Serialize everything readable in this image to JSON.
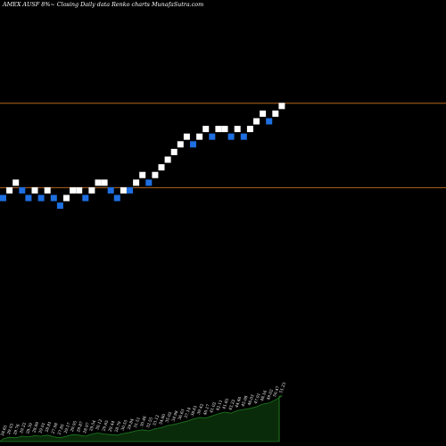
{
  "header": {
    "title": "AMEX  AUSF 8%~  Closing Daily data  Renko  charts MunafaSutra.com"
  },
  "colors": {
    "background": "#000000",
    "up_brick": "#ffffff",
    "down_brick": "#1e6fe0",
    "reference_line": "#b5651d",
    "volume_fill": "#0a2b0a",
    "volume_line": "#1f7a1f",
    "text": "#ffffff"
  },
  "chart_data": {
    "type": "renko",
    "title": "AMEX  AUSF 8%~  Closing Daily data  Renko  charts MunafaSutra.com",
    "bricks": [
      {
        "level": 0,
        "dir": "down"
      },
      {
        "level": 1,
        "dir": "up"
      },
      {
        "level": 2,
        "dir": "up"
      },
      {
        "level": 1,
        "dir": "down"
      },
      {
        "level": 0,
        "dir": "down"
      },
      {
        "level": 1,
        "dir": "up"
      },
      {
        "level": 0,
        "dir": "down"
      },
      {
        "level": 1,
        "dir": "up"
      },
      {
        "level": 0,
        "dir": "down"
      },
      {
        "level": -1,
        "dir": "down"
      },
      {
        "level": 0,
        "dir": "up"
      },
      {
        "level": 1,
        "dir": "up"
      },
      {
        "level": 1,
        "dir": "up"
      },
      {
        "level": 0,
        "dir": "down"
      },
      {
        "level": 1,
        "dir": "up"
      },
      {
        "level": 2,
        "dir": "up"
      },
      {
        "level": 2,
        "dir": "up"
      },
      {
        "level": 1,
        "dir": "down"
      },
      {
        "level": 0,
        "dir": "down"
      },
      {
        "level": 1,
        "dir": "up"
      },
      {
        "level": 1,
        "dir": "down"
      },
      {
        "level": 2,
        "dir": "up"
      },
      {
        "level": 3,
        "dir": "up"
      },
      {
        "level": 2,
        "dir": "down"
      },
      {
        "level": 3,
        "dir": "up"
      },
      {
        "level": 4,
        "dir": "up"
      },
      {
        "level": 5,
        "dir": "up"
      },
      {
        "level": 6,
        "dir": "up"
      },
      {
        "level": 7,
        "dir": "up"
      },
      {
        "level": 8,
        "dir": "up"
      },
      {
        "level": 7,
        "dir": "down"
      },
      {
        "level": 8,
        "dir": "up"
      },
      {
        "level": 9,
        "dir": "up"
      },
      {
        "level": 8,
        "dir": "down"
      },
      {
        "level": 9,
        "dir": "up"
      },
      {
        "level": 9,
        "dir": "up"
      },
      {
        "level": 8,
        "dir": "down"
      },
      {
        "level": 9,
        "dir": "up"
      },
      {
        "level": 8,
        "dir": "down"
      },
      {
        "level": 9,
        "dir": "up"
      },
      {
        "level": 10,
        "dir": "up"
      },
      {
        "level": 11,
        "dir": "up"
      },
      {
        "level": 10,
        "dir": "down"
      },
      {
        "level": 11,
        "dir": "up"
      },
      {
        "level": 12,
        "dir": "up"
      }
    ],
    "reference_levels": [
      12,
      1
    ],
    "volume": [
      0.05,
      0.08,
      0.07,
      0.1,
      0.09,
      0.11,
      0.1,
      0.12,
      0.09,
      0.07,
      0.1,
      0.13,
      0.12,
      0.1,
      0.14,
      0.16,
      0.14,
      0.13,
      0.12,
      0.15,
      0.17,
      0.2,
      0.22,
      0.2,
      0.24,
      0.26,
      0.3,
      0.32,
      0.35,
      0.38,
      0.42,
      0.45,
      0.44,
      0.48,
      0.52,
      0.55,
      0.53,
      0.58,
      0.6,
      0.62,
      0.65,
      0.7,
      0.72,
      0.78,
      0.85
    ],
    "volume_labels": [
      "28.65",
      "29.03",
      "29.76",
      "29.22",
      "28.39",
      "28.89",
      "29.01",
      "28.81",
      "27.98",
      "27.85",
      "29.17",
      "29.95",
      "29.87",
      "28.97",
      "29.54",
      "30.12",
      "29.65",
      "29.44",
      "28.79",
      "30.55",
      "29.84",
      "31.51",
      "30.46",
      "32.55",
      "33.12",
      "34.80",
      "35.02",
      "34.98",
      "36.63",
      "37.14",
      "38.61",
      "39.42",
      "40.17",
      "41.02",
      "42.11",
      "41.65",
      "43.22",
      "44.60",
      "45.08",
      "46.03",
      "47.91",
      "48.16",
      "49.02",
      "50.47",
      "51.23"
    ]
  }
}
